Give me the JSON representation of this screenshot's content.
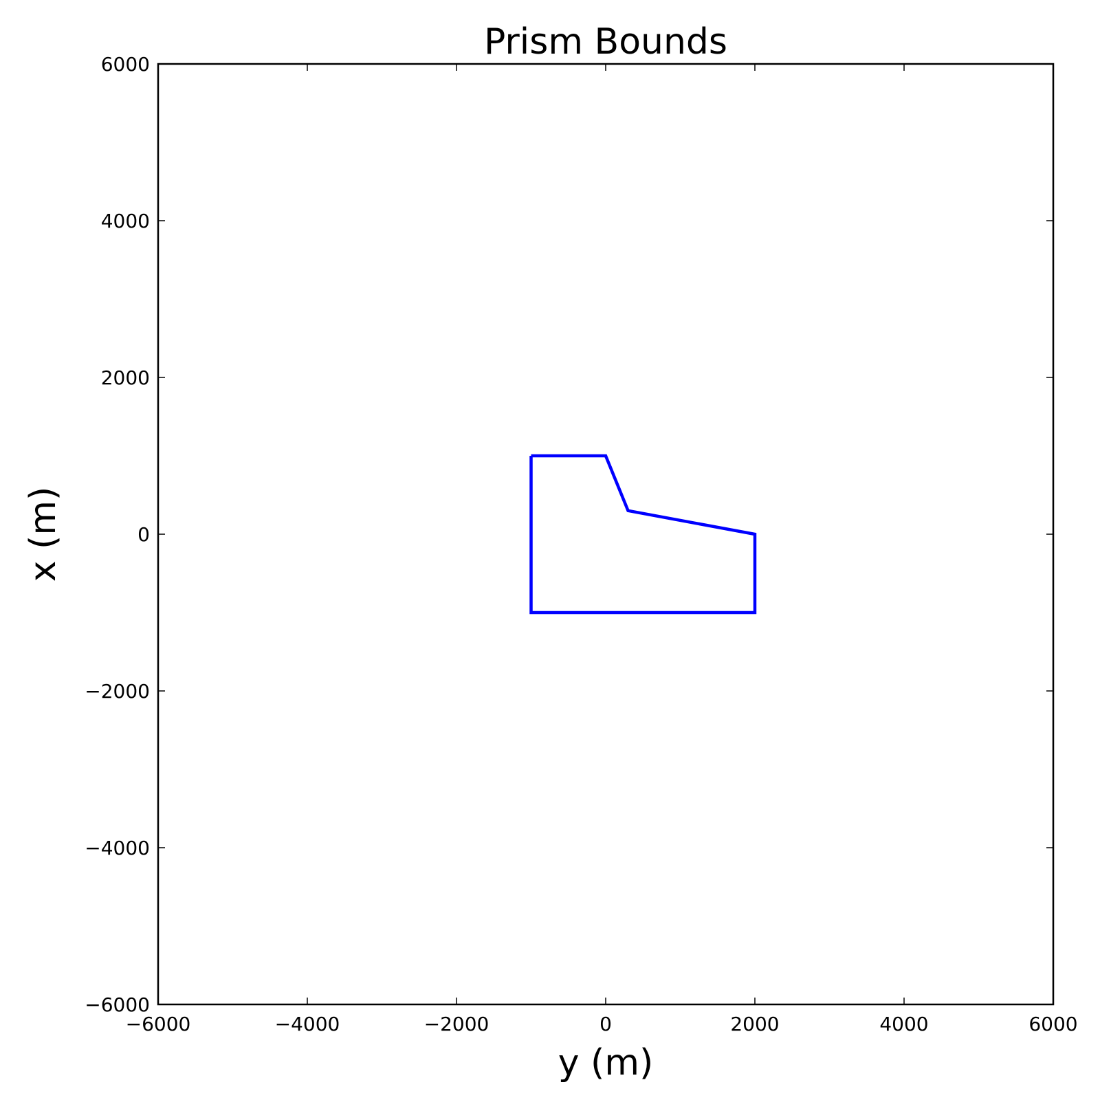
{
  "chart_data": {
    "type": "line",
    "title": "Prism Bounds",
    "xlabel": "y (m)",
    "ylabel": "x (m)",
    "xlim": [
      -6000,
      6000
    ],
    "ylim": [
      -6000,
      6000
    ],
    "xticks": [
      -6000,
      -4000,
      -2000,
      0,
      2000,
      4000,
      6000
    ],
    "yticks": [
      -6000,
      -4000,
      -2000,
      0,
      2000,
      4000,
      6000
    ],
    "xtick_labels": [
      "−6000",
      "−4000",
      "−2000",
      "0",
      "2000",
      "4000",
      "6000"
    ],
    "ytick_labels": [
      "−6000",
      "−4000",
      "−2000",
      "0",
      "2000",
      "4000",
      "6000"
    ],
    "grid": false,
    "series": [
      {
        "color": "#0000ff",
        "x": [
          -1000,
          0,
          300,
          2000,
          2000,
          -1000,
          -1000
        ],
        "y": [
          1000,
          1000,
          300,
          0,
          -1000,
          -1000,
          1000
        ]
      }
    ]
  }
}
